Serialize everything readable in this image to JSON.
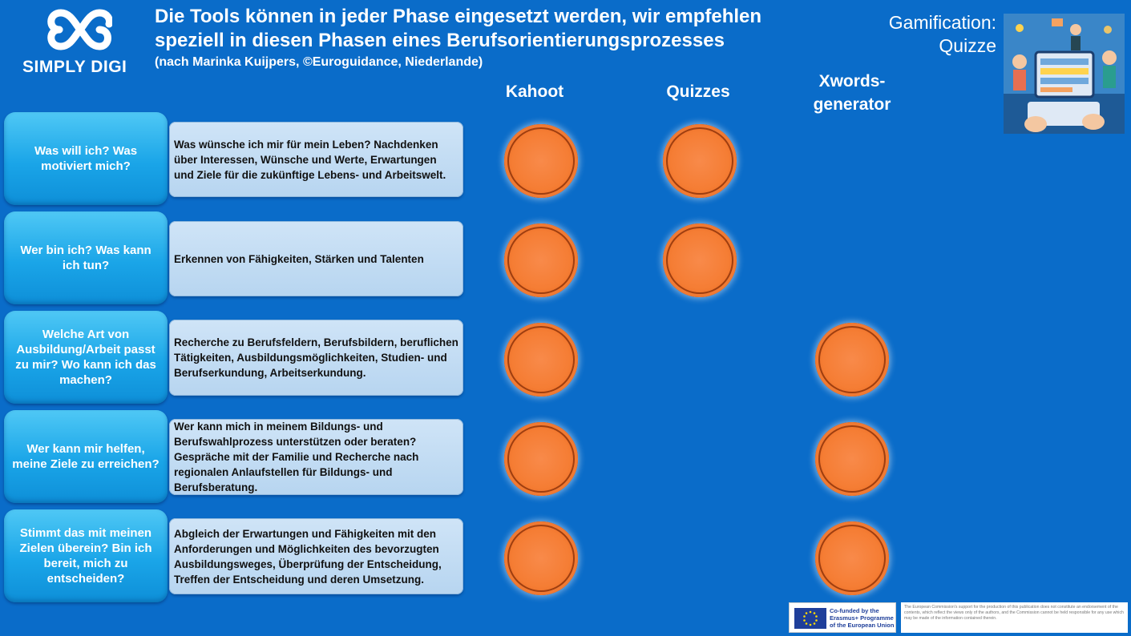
{
  "brand": {
    "name": "SIMPLY DIGI",
    "icon": "infinity-cloud-icon"
  },
  "header": {
    "title_line1": "Die Tools können in jeder Phase eingesetzt werden, wir empfehlen",
    "title_line2": "speziell in diesen Phasen eines Berufsorientierungsprozesses",
    "subtitle": "(nach Marinka Kuijpers, ©Euroguidance, Niederlande)",
    "topic_line1": "Gamification:",
    "topic_line2": "Quizze"
  },
  "columns": [
    {
      "label_line1": "Kahoot",
      "label_line2": ""
    },
    {
      "label_line1": "Quizzes",
      "label_line2": ""
    },
    {
      "label_line1": "Xwords-",
      "label_line2": "generator"
    }
  ],
  "rows": [
    {
      "phase": "Was will ich? Was motiviert mich?",
      "description": "Was wünsche ich mir für mein Leben? Nachdenken über Interessen, Wünsche und Werte, Erwartungen und Ziele für die zukünftige Lebens- und Arbeitswelt.",
      "marks": [
        true,
        true,
        false
      ]
    },
    {
      "phase": "Wer bin ich? Was kann ich tun?",
      "description": "Erkennen von Fähigkeiten, Stärken und Talenten",
      "marks": [
        true,
        true,
        false
      ]
    },
    {
      "phase": "Welche Art von Ausbildung/Arbeit passt zu mir? Wo kann ich das machen?",
      "description": "Recherche zu Berufsfeldern, Berufsbildern, beruflichen Tätigkeiten, Ausbildungsmöglichkeiten, Studien- und Berufserkundung, Arbeitserkundung.",
      "marks": [
        true,
        false,
        true
      ]
    },
    {
      "phase": "Wer kann mir helfen, meine Ziele zu erreichen?",
      "description": "Wer kann mich in meinem Bildungs- und Berufswahlprozess unterstützen oder beraten? Gespräche mit der Familie und Recherche nach regionalen Anlaufstellen für Bildungs- und Berufsberatung.",
      "marks": [
        true,
        false,
        true
      ]
    },
    {
      "phase": "Stimmt das mit meinen Zielen überein? Bin ich bereit, mich zu entscheiden?",
      "description": "Abgleich der Erwartungen und Fähigkeiten mit den Anforderungen und Möglichkeiten des bevorzugten Ausbildungsweges, Überprüfung der Entscheidung, Treffen der Entscheidung und deren Umsetzung.",
      "marks": [
        true,
        false,
        true
      ]
    }
  ],
  "footer": {
    "cofund_line1": "Co-funded by the",
    "cofund_line2": "Erasmus+ Programme",
    "cofund_line3": "of the European Union",
    "disclaimer": "The European Commission's support for the production of this publication does not constitute an endorsement of the contents, which reflect the views only of the authors, and the Commission cannot be held responsible for any use which may be made of the information contained therein."
  },
  "colors": {
    "background": "#0a6cc9",
    "marker": "#f57d34",
    "phase_box": "#1aa5e8",
    "description_box": "#c3dcf3"
  }
}
